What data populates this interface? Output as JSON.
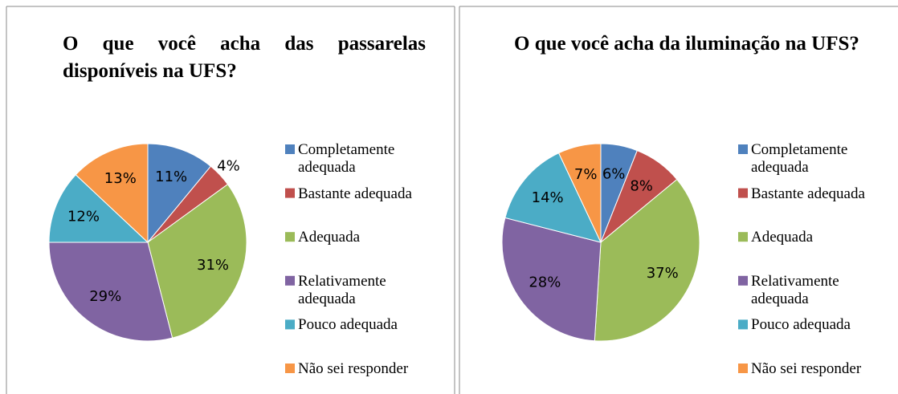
{
  "chart_data": [
    {
      "type": "pie",
      "title": "O que você acha das passarelas disponíveis na UFS?",
      "categories": [
        "Completamente adequada",
        "Bastante adequada",
        "Adequada",
        "Relativamente adequada",
        "Pouco adequada",
        "Não sei responder"
      ],
      "values": [
        11,
        4,
        31,
        29,
        12,
        13
      ],
      "value_labels": [
        "11%",
        "4%",
        "31%",
        "29%",
        "12%",
        "13%"
      ],
      "colors": [
        "#4f81bd",
        "#c0504d",
        "#9bbb59",
        "#8064a2",
        "#4bacc6",
        "#f79646"
      ],
      "legend": "right"
    },
    {
      "type": "pie",
      "title": "O que você acha da iluminação na UFS?",
      "categories": [
        "Completamente adequada",
        "Bastante adequada",
        "Adequada",
        "Relativamente adequada",
        "Pouco adequada",
        "Não sei responder"
      ],
      "values": [
        6,
        8,
        37,
        28,
        14,
        7
      ],
      "value_labels": [
        "6%",
        "8%",
        "37%",
        "28%",
        "14%",
        "7%"
      ],
      "colors": [
        "#4f81bd",
        "#c0504d",
        "#9bbb59",
        "#8064a2",
        "#4bacc6",
        "#f79646"
      ],
      "legend": "right"
    }
  ]
}
